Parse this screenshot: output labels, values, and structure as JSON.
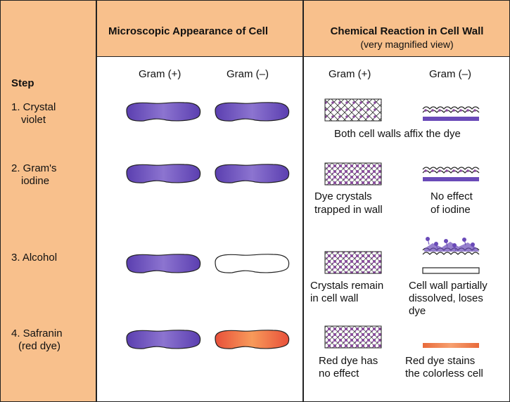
{
  "header": {
    "microscopic": "Microscopic Appearance of Cell",
    "chemical": "Chemical Reaction in Cell Wall",
    "chemical_sub": "(very magnified view)"
  },
  "columns": {
    "micro_pos": "Gram (+)",
    "micro_neg": "Gram (–)",
    "chem_pos": "Gram (+)",
    "chem_neg": "Gram (–)"
  },
  "step_header": "Step",
  "steps": [
    {
      "label_1": "1. Crystal",
      "label_2": "violet",
      "micro_pos_color": "purple",
      "micro_neg_color": "purple"
    },
    {
      "label_1": "2. Gram's",
      "label_2": "iodine",
      "micro_pos_color": "purple",
      "micro_neg_color": "purple"
    },
    {
      "label_1": "3. Alcohol",
      "label_2": "",
      "micro_pos_color": "purple",
      "micro_neg_color": "colorless"
    },
    {
      "label_1": "4. Safranin",
      "label_2": "(red dye)",
      "micro_pos_color": "purple",
      "micro_neg_color": "red"
    }
  ],
  "captions": {
    "both_affix": "Both cell walls affix the dye",
    "dye_trapped_1": "Dye crystals",
    "dye_trapped_2": "trapped in wall",
    "no_effect_1": "No effect",
    "no_effect_2": "of iodine",
    "crystals_remain_1": "Crystals remain",
    "crystals_remain_2": "in cell wall",
    "dissolved_1": "Cell wall partially",
    "dissolved_2": "dissolved, loses",
    "dissolved_3": "dye",
    "red_no_effect_1": "Red dye has",
    "red_no_effect_2": "no effect",
    "red_stains_1": "Red dye stains",
    "red_stains_2": "the colorless cell"
  },
  "colors": {
    "header_bg": "#f8c08c",
    "purple": "#5b3fb0",
    "purple_light": "#9b86d6",
    "red": "#e8503a",
    "orange": "#f79a5a",
    "dot": "#8a4a9e"
  }
}
